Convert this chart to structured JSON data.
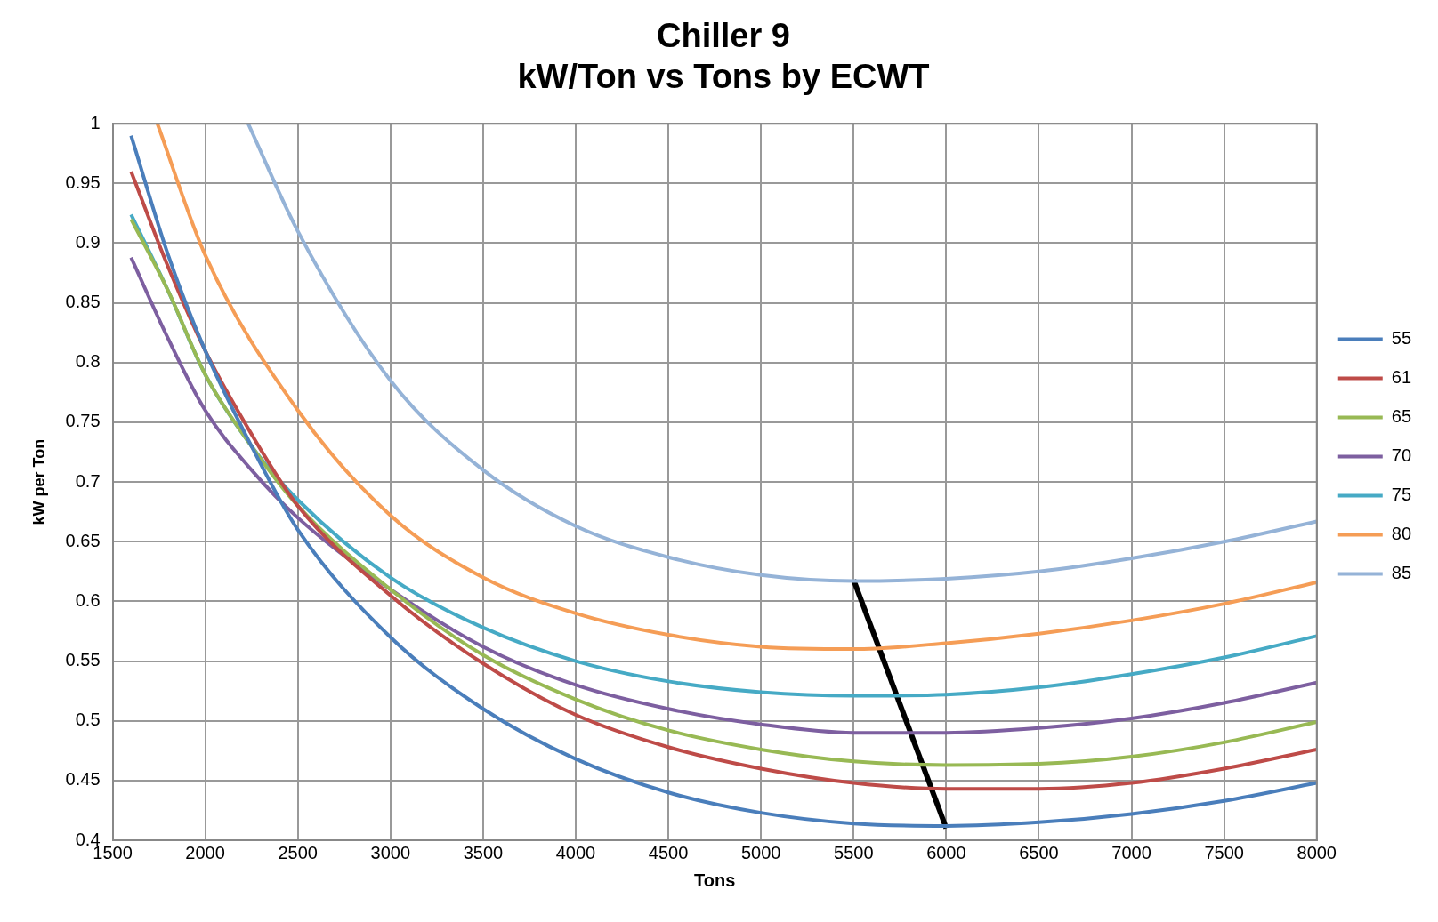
{
  "chart_data": {
    "type": "line",
    "title": "Chiller 9",
    "subtitle": "kW/Ton vs Tons by ECWT",
    "xlabel": "Tons",
    "ylabel": "kW per Ton",
    "xlim": [
      1500,
      8000
    ],
    "xticks": [
      1500,
      2000,
      2500,
      3000,
      3500,
      4000,
      4500,
      5000,
      5500,
      6000,
      6500,
      7000,
      7500,
      8000
    ],
    "ylim": [
      0.4,
      1
    ],
    "yticks": [
      0.4,
      0.45,
      0.5,
      0.55,
      0.6,
      0.65,
      0.7,
      0.75,
      0.8,
      0.85,
      0.9,
      0.95,
      1
    ],
    "grid": true,
    "legend": "right",
    "marker": "none",
    "line_style": "solid",
    "series": [
      {
        "name": "55",
        "color": "#4a7ebb",
        "x": [
          1600,
          1800,
          2000,
          2250,
          2500,
          3000,
          3500,
          4000,
          4500,
          5000,
          5500,
          6000,
          6500,
          7000,
          7500,
          8000
        ],
        "values": [
          0.99,
          0.89,
          0.81,
          0.73,
          0.66,
          0.57,
          0.51,
          0.468,
          0.44,
          0.423,
          0.414,
          0.412,
          0.415,
          0.422,
          0.433,
          0.448
        ]
      },
      {
        "name": "61",
        "color": "#be4b48",
        "x": [
          1600,
          1800,
          2000,
          2250,
          2500,
          3000,
          3500,
          4000,
          4500,
          5000,
          5500,
          6000,
          6500,
          7000,
          7500,
          8000
        ],
        "values": [
          0.96,
          0.88,
          0.81,
          0.74,
          0.68,
          0.605,
          0.548,
          0.505,
          0.478,
          0.46,
          0.448,
          0.443,
          0.443,
          0.448,
          0.46,
          0.476
        ]
      },
      {
        "name": "65",
        "color": "#98b954",
        "x": [
          1600,
          1800,
          2000,
          2250,
          2500,
          3000,
          3500,
          4000,
          4500,
          5000,
          5500,
          6000,
          6500,
          7000,
          7500,
          8000
        ],
        "values": [
          0.92,
          0.86,
          0.79,
          0.73,
          0.68,
          0.61,
          0.555,
          0.518,
          0.492,
          0.476,
          0.466,
          0.463,
          0.464,
          0.47,
          0.482,
          0.499
        ]
      },
      {
        "name": "70",
        "color": "#7d5fa0",
        "x": [
          1600,
          1800,
          2000,
          2250,
          2500,
          3000,
          3500,
          4000,
          4500,
          5000,
          5500,
          6000,
          6500,
          7000,
          7500,
          8000
        ],
        "values": [
          0.888,
          0.82,
          0.76,
          0.71,
          0.67,
          0.61,
          0.562,
          0.53,
          0.51,
          0.497,
          0.49,
          0.49,
          0.494,
          0.502,
          0.515,
          0.532
        ]
      },
      {
        "name": "75",
        "color": "#46aac5",
        "x": [
          1600,
          1800,
          2000,
          2250,
          2500,
          3000,
          3500,
          4000,
          4500,
          5000,
          5500,
          6000,
          6500,
          7000,
          7500,
          8000
        ],
        "values": [
          0.924,
          0.86,
          0.79,
          0.73,
          0.685,
          0.62,
          0.578,
          0.55,
          0.533,
          0.524,
          0.521,
          0.522,
          0.528,
          0.539,
          0.553,
          0.571
        ]
      },
      {
        "name": "80",
        "color": "#f59d56",
        "x": [
          1742,
          2000,
          2500,
          3000,
          3500,
          4000,
          4500,
          5000,
          5500,
          6000,
          6500,
          7000,
          7500,
          8000
        ],
        "values": [
          1,
          0.89,
          0.76,
          0.672,
          0.62,
          0.59,
          0.572,
          0.562,
          0.56,
          0.565,
          0.573,
          0.584,
          0.598,
          0.616
        ]
      },
      {
        "name": "85",
        "color": "#95b3d7",
        "x": [
          2232,
          2500,
          3000,
          3500,
          4000,
          4500,
          5000,
          5500,
          6000,
          6500,
          7000,
          7500,
          8000
        ],
        "values": [
          1,
          0.91,
          0.785,
          0.71,
          0.663,
          0.637,
          0.622,
          0.617,
          0.619,
          0.625,
          0.636,
          0.65,
          0.667
        ]
      },
      {
        "color": "#000000",
        "x": [
          5500,
          6000
        ],
        "values": [
          0.618,
          0.41
        ]
      }
    ]
  }
}
